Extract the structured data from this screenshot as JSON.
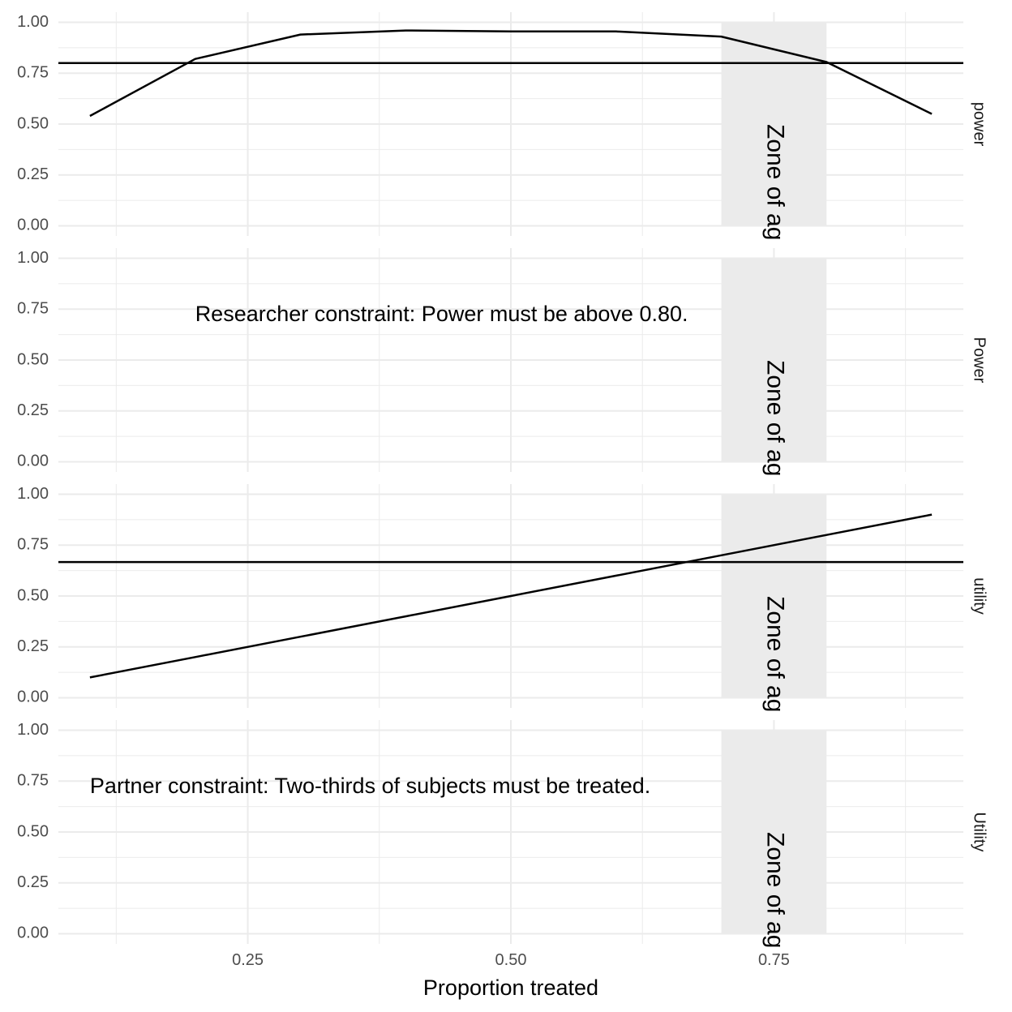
{
  "chart_data": {
    "type": "line",
    "xlabel": "Proportion treated",
    "xlim": [
      0.07,
      0.93
    ],
    "x_ticks": [
      0.25,
      0.5,
      0.75
    ],
    "x_tick_labels": [
      "0.25",
      "0.50",
      "0.75"
    ],
    "x_minor_ticks": [
      0.125,
      0.375,
      0.625,
      0.875
    ],
    "ylim": [
      -0.05,
      1.05
    ],
    "y_ticks": [
      0,
      0.25,
      0.5,
      0.75,
      1.0
    ],
    "y_tick_labels": [
      "0.00",
      "0.25",
      "0.50",
      "0.75",
      "1.00"
    ],
    "grid": true,
    "colors": {
      "line": "#000000",
      "zone": "#ebebeb",
      "grid": "#ebebeb"
    },
    "zone": {
      "xmin": 0.7,
      "xmax": 0.8,
      "label": "Zone of ag"
    },
    "panels": [
      {
        "strip": "power",
        "hline": 0.8,
        "series": [
          {
            "x": [
              0.1,
              0.2,
              0.3,
              0.4,
              0.5,
              0.6,
              0.7,
              0.8,
              0.9
            ],
            "y": [
              0.54,
              0.82,
              0.94,
              0.96,
              0.955,
              0.955,
              0.93,
              0.805,
              0.55
            ]
          }
        ]
      },
      {
        "strip": "Power",
        "annotation": {
          "text": "Researcher constraint: Power must be above 0.80.",
          "x": 0.2,
          "y": 0.72
        }
      },
      {
        "strip": "utility",
        "hline": 0.6667,
        "series": [
          {
            "x": [
              0.1,
              0.2,
              0.3,
              0.4,
              0.5,
              0.6,
              0.7,
              0.8,
              0.9
            ],
            "y": [
              0.1,
              0.2,
              0.3,
              0.4,
              0.5,
              0.6,
              0.7,
              0.8,
              0.9
            ]
          }
        ]
      },
      {
        "strip": "Utility",
        "annotation": {
          "text": "Partner constraint: Two-thirds of subjects must be treated.",
          "x": 0.1,
          "y": 0.72
        }
      }
    ]
  }
}
